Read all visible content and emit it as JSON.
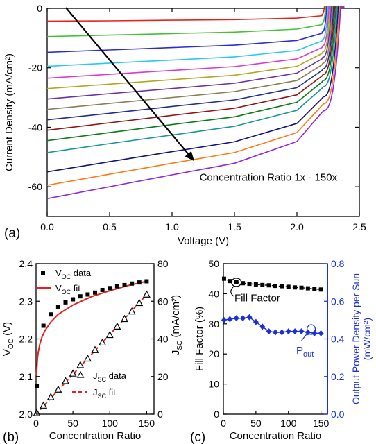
{
  "chart_data": [
    {
      "panel": "a",
      "type": "line",
      "panel_label": "(a)",
      "xlabel": "Voltage (V)",
      "ylabel": "Current Density (mA/cm²)",
      "xlim": [
        0,
        2.5
      ],
      "ylim": [
        -70,
        0
      ],
      "xticks": [
        "0.0",
        "0.5",
        "1.0",
        "1.5",
        "2.0",
        "2.5"
      ],
      "yticks": [
        "0",
        "-20",
        "-40",
        "-60"
      ],
      "annotation": "Concentration Ratio 1x - 150x",
      "voc_trend_V": [
        2.2,
        2.33
      ],
      "series_colors": [
        "#e8201c",
        "#46c036",
        "#2b2bd6",
        "#26c9f0",
        "#d93ad0",
        "#b0a820",
        "#6b2fa3",
        "#8a7e58",
        "#1f2d8e",
        "#8e1414",
        "#0b7a1b",
        "#179696",
        "#10127a",
        "#ff7a14",
        "#8a28e0"
      ],
      "series": [
        {
          "x": [
            0,
            0.5,
            1.0,
            1.5,
            2.0,
            2.2
          ],
          "y": [
            -4.3,
            -4.2,
            -4.0,
            -3.8,
            -3.3,
            -2.5
          ]
        },
        {
          "x": [
            0,
            0.5,
            1.0,
            1.5,
            2.0,
            2.2
          ],
          "y": [
            -9.5,
            -9.0,
            -8.5,
            -8.0,
            -7.0,
            -5.5
          ]
        },
        {
          "x": [
            0,
            0.5,
            1.0,
            1.5,
            2.0,
            2.2
          ],
          "y": [
            -14.8,
            -14.0,
            -13.2,
            -12.4,
            -10.8,
            -8.4
          ]
        },
        {
          "x": [
            0,
            0.5,
            1.0,
            1.5,
            2.0,
            2.2
          ],
          "y": [
            -19.5,
            -18.4,
            -17.4,
            -16.3,
            -14.2,
            -11.0
          ]
        },
        {
          "x": [
            0,
            0.5,
            1.0,
            1.5,
            2.0,
            2.2
          ],
          "y": [
            -23.5,
            -22.2,
            -20.9,
            -19.6,
            -17.0,
            -13.2
          ]
        },
        {
          "x": [
            0,
            0.5,
            1.0,
            1.5,
            2.0,
            2.2
          ],
          "y": [
            -27.0,
            -25.5,
            -24.0,
            -22.5,
            -19.5,
            -15.2
          ]
        },
        {
          "x": [
            0,
            0.5,
            1.0,
            1.5,
            2.0,
            2.2
          ],
          "y": [
            -30.5,
            -28.7,
            -27.0,
            -25.2,
            -21.8,
            -17.0
          ]
        },
        {
          "x": [
            0,
            0.5,
            1.0,
            1.5,
            2.0,
            2.2
          ],
          "y": [
            -34.0,
            -32.0,
            -30.0,
            -28.0,
            -24.3,
            -19.0
          ]
        },
        {
          "x": [
            0,
            0.5,
            1.0,
            1.5,
            2.0,
            2.2
          ],
          "y": [
            -37.5,
            -35.3,
            -33.0,
            -30.8,
            -26.7,
            -20.9
          ]
        },
        {
          "x": [
            0,
            0.5,
            1.0,
            1.5,
            2.0,
            2.2
          ],
          "y": [
            -41.0,
            -38.5,
            -36.0,
            -33.6,
            -29.1,
            -22.8
          ]
        },
        {
          "x": [
            0,
            0.5,
            1.0,
            1.5,
            2.0,
            2.2
          ],
          "y": [
            -44.5,
            -41.8,
            -39.1,
            -36.5,
            -31.6,
            -24.8
          ]
        },
        {
          "x": [
            0,
            0.5,
            1.0,
            1.5,
            2.0,
            2.2
          ],
          "y": [
            -48.5,
            -45.5,
            -42.6,
            -39.7,
            -34.3,
            -26.9
          ]
        },
        {
          "x": [
            0,
            0.5,
            1.0,
            1.5,
            2.0,
            2.2
          ],
          "y": [
            -55.0,
            -51.6,
            -48.2,
            -44.9,
            -38.7,
            -30.3
          ]
        },
        {
          "x": [
            0,
            0.5,
            1.0,
            1.5,
            2.0,
            2.2
          ],
          "y": [
            -59.5,
            -55.8,
            -52.1,
            -48.5,
            -41.8,
            -32.7
          ]
        },
        {
          "x": [
            0,
            0.5,
            1.0,
            1.5,
            2.0,
            2.2
          ],
          "y": [
            -64.0,
            -60.0,
            -56.0,
            -52.1,
            -44.8,
            -35.0
          ]
        }
      ]
    },
    {
      "panel": "b",
      "type": "scatter",
      "panel_label": "(b)",
      "xlabel": "Concentration Ratio",
      "ylabel_left": "V",
      "ylabel_left_sub": "OC",
      "ylabel_left_unit": " (V)",
      "ylabel_right": "J",
      "ylabel_right_sub": "SC",
      "ylabel_right_unit": " (mA/cm²)",
      "xlim": [
        0,
        160
      ],
      "ylim_left": [
        2.0,
        2.4
      ],
      "ylim_right": [
        0,
        80
      ],
      "xticks": [
        "0",
        "50",
        "100",
        "150"
      ],
      "yticks_left": [
        "2.0",
        "2.1",
        "2.2",
        "2.3",
        "2.4"
      ],
      "yticks_right": [
        "0",
        "20",
        "40",
        "60",
        "80"
      ],
      "legend": [
        {
          "marker": "square",
          "main": "V",
          "sub": "OC",
          "rest": " data"
        },
        {
          "marker": "solid-line",
          "main": "V",
          "sub": "OC",
          "rest": " fit"
        }
      ],
      "legend_lower": [
        {
          "marker": "triangle",
          "main": "J",
          "sub": "SC",
          "rest": " data"
        },
        {
          "marker": "dashed-line",
          "main": "J",
          "sub": "SC",
          "rest": " fit"
        }
      ],
      "voc_data": {
        "x": [
          1,
          10,
          20,
          30,
          40,
          50,
          60,
          70,
          80,
          90,
          100,
          110,
          120,
          130,
          140,
          150
        ],
        "y": [
          2.075,
          2.235,
          2.265,
          2.285,
          2.297,
          2.305,
          2.313,
          2.318,
          2.323,
          2.33,
          2.335,
          2.34,
          2.343,
          2.347,
          2.35,
          2.353
        ]
      },
      "voc_fit": {
        "x": [
          0.5,
          1,
          2,
          3,
          5,
          8,
          12,
          20,
          30,
          50,
          75,
          100,
          125,
          150
        ],
        "y": [
          2.105,
          2.12,
          2.15,
          2.165,
          2.185,
          2.205,
          2.222,
          2.245,
          2.265,
          2.29,
          2.312,
          2.328,
          2.342,
          2.353
        ]
      },
      "jsc_data": {
        "x": [
          1,
          10,
          20,
          30,
          40,
          50,
          60,
          70,
          80,
          90,
          100,
          110,
          120,
          130,
          140,
          150
        ],
        "y": [
          0.5,
          4.5,
          9.0,
          13.0,
          17.5,
          21.5,
          26.0,
          29.5,
          34.0,
          38.0,
          42.0,
          46.5,
          50.5,
          54.5,
          59.0,
          63.5
        ]
      },
      "jsc_fit": {
        "x": [
          0,
          150
        ],
        "y": [
          0,
          63.5
        ]
      }
    },
    {
      "panel": "c",
      "type": "line",
      "panel_label": "(c)",
      "xlabel": "Concentration Ratio",
      "ylabel_left": "Fill Factor (%)",
      "ylabel_right_line1": "Output Power Density per Sun",
      "ylabel_right_line2": "(mW/cm²)",
      "right_axis_color": "#1a2fe0",
      "xlim": [
        0,
        160
      ],
      "ylim_left": [
        0,
        50
      ],
      "ylim_right": [
        0.0,
        0.8
      ],
      "xticks": [
        "0",
        "50",
        "100",
        "150"
      ],
      "yticks_left": [
        "0",
        "10",
        "20",
        "30",
        "40",
        "50"
      ],
      "yticks_right": [
        "0.0",
        "0.2",
        "0.4",
        "0.6",
        "0.8"
      ],
      "ff_label": "Fill Factor",
      "pout_main": "P",
      "pout_sub": "out",
      "fill_factor": {
        "x": [
          1,
          10,
          20,
          30,
          40,
          50,
          60,
          70,
          80,
          90,
          100,
          110,
          120,
          130,
          140,
          150
        ],
        "y": [
          45.0,
          44.2,
          43.8,
          43.5,
          43.3,
          43.1,
          42.9,
          42.8,
          42.6,
          42.5,
          42.3,
          42.1,
          42.0,
          41.8,
          41.6,
          41.4
        ]
      },
      "pout": {
        "x": [
          1,
          10,
          20,
          30,
          40,
          50,
          60,
          70,
          80,
          90,
          100,
          110,
          120,
          130,
          140,
          150
        ],
        "y": [
          0.5,
          0.505,
          0.51,
          0.51,
          0.515,
          0.49,
          0.465,
          0.44,
          0.435,
          0.435,
          0.44,
          0.44,
          0.44,
          0.435,
          0.43,
          0.43
        ]
      }
    }
  ]
}
